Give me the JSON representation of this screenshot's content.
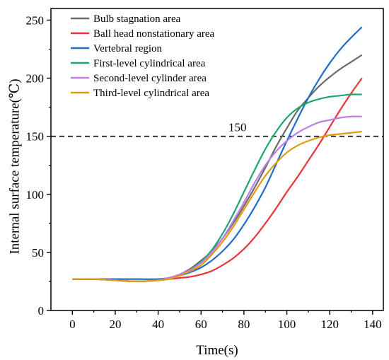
{
  "chart_data": {
    "type": "line",
    "title": "",
    "xlabel": "Time(s)",
    "ylabel": "Internal surface temperature(℃)",
    "xlim": [
      -10,
      145
    ],
    "ylim": [
      0,
      260
    ],
    "xticks": [
      0,
      20,
      40,
      60,
      80,
      100,
      120,
      140
    ],
    "yticks": [
      0,
      50,
      100,
      150,
      200,
      250
    ],
    "xtick_labels": [
      "0",
      "20",
      "40",
      "60",
      "80",
      "100",
      "120",
      "140"
    ],
    "ytick_labels": [
      "0",
      "50",
      "100",
      "150",
      "200",
      "250"
    ],
    "grid": false,
    "legend_position": "top-left",
    "reference_line": {
      "y": 150,
      "label": "150",
      "label_x": 77,
      "style": "dashed",
      "color": "#000000"
    },
    "x": [
      0,
      10,
      20,
      30,
      40,
      45,
      50,
      55,
      60,
      65,
      70,
      75,
      80,
      85,
      90,
      95,
      100,
      105,
      110,
      115,
      120,
      125,
      130,
      135
    ],
    "series": [
      {
        "name": "Bulb stagnation area",
        "color": "#6b6b6b",
        "values": [
          27,
          27,
          26,
          25,
          26,
          28,
          31,
          36,
          43,
          51,
          62,
          75,
          90,
          106,
          123,
          141,
          157,
          172,
          183,
          193,
          201,
          208,
          214,
          220
        ]
      },
      {
        "name": "Ball head nonstationary area",
        "color": "#e8343a",
        "values": [
          27,
          27,
          26,
          25,
          26,
          27,
          28,
          29,
          31,
          34,
          39,
          45,
          53,
          63,
          75,
          88,
          102,
          115,
          129,
          143,
          158,
          173,
          187,
          200
        ]
      },
      {
        "name": "Vertebral region",
        "color": "#1f6ec9",
        "values": [
          27,
          27,
          27,
          27,
          27,
          28,
          30,
          33,
          37,
          43,
          51,
          61,
          74,
          89,
          106,
          126,
          146,
          165,
          183,
          199,
          213,
          225,
          235,
          244
        ]
      },
      {
        "name": "First-level cylindrical area",
        "color": "#1ea672",
        "values": [
          27,
          27,
          26,
          25,
          26,
          28,
          31,
          35,
          42,
          52,
          66,
          83,
          102,
          121,
          139,
          154,
          166,
          174,
          179,
          182,
          184,
          185,
          186,
          186
        ]
      },
      {
        "name": "Second-level cylinder area",
        "color": "#c07de3",
        "values": [
          27,
          27,
          26,
          25,
          26,
          28,
          31,
          35,
          41,
          50,
          62,
          77,
          93,
          110,
          125,
          137,
          146,
          153,
          158,
          162,
          164,
          166,
          167,
          167
        ]
      },
      {
        "name": "Third-level cylindrical area",
        "color": "#e39a12",
        "values": [
          27,
          27,
          26,
          25,
          26,
          27,
          30,
          34,
          39,
          48,
          59,
          72,
          87,
          102,
          116,
          127,
          136,
          142,
          146,
          149,
          151,
          152,
          153,
          154
        ]
      }
    ]
  }
}
